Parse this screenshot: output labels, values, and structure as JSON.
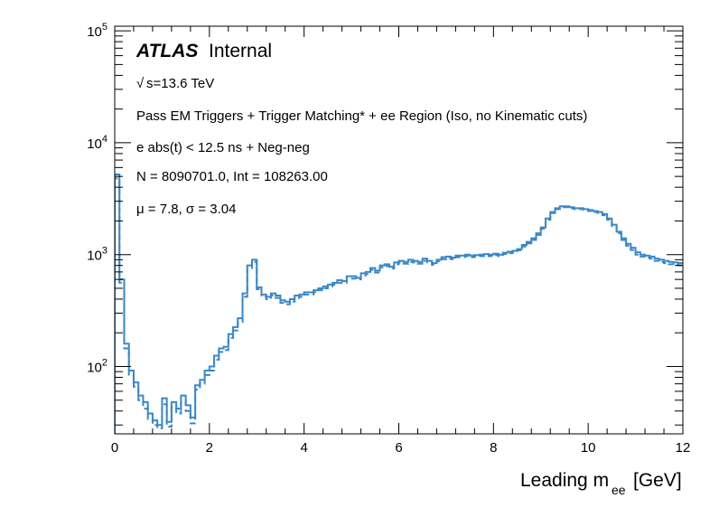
{
  "chart_data": {
    "type": "line",
    "title": "",
    "xlabel": "Leading m",
    "xlabel_sub": "ee",
    "xlabel_unit": "[GeV]",
    "ylabel": "",
    "xlim": [
      0,
      12
    ],
    "ylim": [
      25,
      110000
    ],
    "yscale": "log",
    "grid": false,
    "x_ticks": [
      "0",
      "2",
      "4",
      "6",
      "8",
      "10",
      "12"
    ],
    "y_ticks": [
      {
        "base": "10",
        "exp": "2",
        "value": 100
      },
      {
        "base": "10",
        "exp": "3",
        "value": 1000
      },
      {
        "base": "10",
        "exp": "4",
        "value": 10000
      },
      {
        "base": "10",
        "exp": "5",
        "value": 100000
      }
    ],
    "annotations": {
      "atlas": "ATLAS",
      "internal": "Internal",
      "sqrt_s": "s=13.6 TeV",
      "selection": "Pass EM Triggers + Trigger Matching* + ee Region (Iso, no Kinematic cuts)",
      "timing": "e abs(t) < 12.5 ns + Neg-neg",
      "counts": "N = 8090701.0, Int  = 108263.00",
      "stats": "μ = 7.8, σ = 3.04"
    },
    "series": [
      {
        "color": "#3a87c8",
        "style": "solid",
        "x": [
          0.05,
          0.15,
          0.25,
          0.35,
          0.45,
          0.55,
          0.65,
          0.75,
          0.85,
          0.95,
          1.05,
          1.15,
          1.25,
          1.35,
          1.45,
          1.55,
          1.65,
          1.75,
          1.85,
          1.95,
          2.05,
          2.15,
          2.25,
          2.35,
          2.45,
          2.55,
          2.65,
          2.75,
          2.85,
          2.95,
          3.05,
          3.15,
          3.25,
          3.35,
          3.45,
          3.55,
          3.65,
          3.75,
          3.85,
          3.95,
          4.05,
          4.15,
          4.25,
          4.35,
          4.45,
          4.55,
          4.65,
          4.75,
          4.85,
          4.95,
          5.05,
          5.15,
          5.25,
          5.35,
          5.45,
          5.55,
          5.65,
          5.75,
          5.85,
          5.95,
          6.05,
          6.15,
          6.25,
          6.35,
          6.45,
          6.55,
          6.65,
          6.75,
          6.85,
          6.95,
          7.05,
          7.15,
          7.25,
          7.35,
          7.45,
          7.55,
          7.65,
          7.75,
          7.85,
          7.95,
          8.05,
          8.15,
          8.25,
          8.35,
          8.45,
          8.55,
          8.65,
          8.75,
          8.85,
          8.95,
          9.05,
          9.15,
          9.25,
          9.35,
          9.45,
          9.55,
          9.65,
          9.75,
          9.85,
          9.95,
          10.05,
          10.15,
          10.25,
          10.35,
          10.45,
          10.55,
          10.65,
          10.75,
          10.85,
          10.95,
          11.05,
          11.15,
          11.25,
          11.35,
          11.45,
          11.55,
          11.65,
          11.75,
          11.85,
          11.95
        ],
        "y": [
          5200,
          600,
          160,
          92,
          72,
          55,
          48,
          38,
          33,
          30,
          52,
          32,
          48,
          42,
          55,
          45,
          35,
          68,
          76,
          92,
          100,
          125,
          145,
          150,
          195,
          225,
          270,
          450,
          800,
          900,
          510,
          440,
          420,
          450,
          430,
          390,
          380,
          400,
          430,
          440,
          460,
          460,
          480,
          500,
          520,
          540,
          560,
          590,
          580,
          640,
          640,
          620,
          680,
          700,
          760,
          720,
          800,
          820,
          780,
          850,
          880,
          860,
          900,
          880,
          860,
          920,
          880,
          840,
          900,
          950,
          960,
          940,
          980,
          980,
          1000,
          980,
          990,
          1000,
          1010,
          1000,
          1020,
          1000,
          1040,
          1060,
          1080,
          1120,
          1220,
          1300,
          1400,
          1550,
          1750,
          2100,
          2400,
          2600,
          2700,
          2700,
          2650,
          2600,
          2600,
          2550,
          2500,
          2450,
          2400,
          2300,
          2100,
          1850,
          1600,
          1400,
          1250,
          1150,
          1050,
          1000,
          980,
          960,
          920,
          900,
          880,
          860,
          850,
          840
        ]
      },
      {
        "color": "#3a87c8",
        "style": "dashed",
        "x": [
          0.05,
          0.15,
          0.25,
          0.35,
          0.45,
          0.55,
          0.65,
          0.75,
          0.85,
          0.95,
          1.05,
          1.15,
          1.25,
          1.35,
          1.45,
          1.55,
          1.65,
          1.75,
          1.85,
          1.95,
          2.05,
          2.15,
          2.25,
          2.35,
          2.45,
          2.55,
          2.65,
          2.75,
          2.85,
          2.95,
          3.05,
          3.15,
          3.25,
          3.35,
          3.45,
          3.55,
          3.65,
          3.75,
          3.85,
          3.95,
          4.05,
          4.15,
          4.25,
          4.35,
          4.45,
          4.55,
          4.65,
          4.75,
          4.85,
          4.95,
          5.05,
          5.15,
          5.25,
          5.35,
          5.45,
          5.55,
          5.65,
          5.75,
          5.85,
          5.95,
          6.05,
          6.15,
          6.25,
          6.35,
          6.45,
          6.55,
          6.65,
          6.75,
          6.85,
          6.95,
          7.05,
          7.15,
          7.25,
          7.35,
          7.45,
          7.55,
          7.65,
          7.75,
          7.85,
          7.95,
          8.05,
          8.15,
          8.25,
          8.35,
          8.45,
          8.55,
          8.65,
          8.75,
          8.85,
          8.95,
          9.05,
          9.15,
          9.25,
          9.35,
          9.45,
          9.55,
          9.65,
          9.75,
          9.85,
          9.95,
          10.05,
          10.15,
          10.25,
          10.35,
          10.45,
          10.55,
          10.65,
          10.75,
          10.85,
          10.95,
          11.05,
          11.15,
          11.25,
          11.35,
          11.45,
          11.55,
          11.65,
          11.75,
          11.85,
          11.95
        ],
        "y": [
          4800,
          560,
          145,
          84,
          66,
          50,
          42,
          34,
          30,
          28,
          46,
          29,
          43,
          38,
          49,
          40,
          31,
          62,
          70,
          84,
          92,
          115,
          135,
          140,
          180,
          210,
          250,
          420,
          760,
          860,
          490,
          420,
          400,
          430,
          410,
          370,
          360,
          380,
          410,
          420,
          440,
          440,
          460,
          480,
          500,
          520,
          540,
          560,
          560,
          610,
          610,
          600,
          650,
          670,
          730,
          690,
          770,
          790,
          750,
          820,
          850,
          830,
          860,
          850,
          830,
          880,
          850,
          810,
          870,
          910,
          930,
          910,
          950,
          950,
          970,
          950,
          960,
          970,
          980,
          970,
          990,
          970,
          1010,
          1030,
          1050,
          1090,
          1180,
          1260,
          1350,
          1500,
          1700,
          2050,
          2350,
          2550,
          2650,
          2650,
          2600,
          2550,
          2550,
          2500,
          2450,
          2400,
          2350,
          2250,
          2050,
          1800,
          1550,
          1350,
          1200,
          1100,
          1000,
          960,
          940,
          920,
          880,
          860,
          840,
          820,
          810,
          800
        ]
      }
    ]
  }
}
